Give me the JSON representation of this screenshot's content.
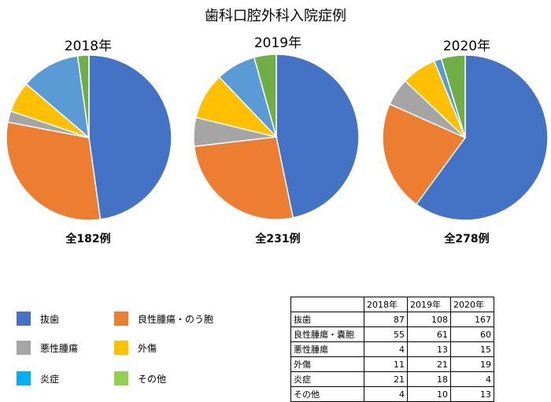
{
  "title": "歯科口腔外科入院症例",
  "colors": {
    "抜歯": "#4472C4",
    "良性腫瘍・のう胞": "#ED7D31",
    "悪性腫瘍": "#A5A5A5",
    "外傷": "#FFC000",
    "炎症": "#5B9BD5",
    "その他": "#70AD47"
  },
  "legend": {
    "items": [
      {
        "label": "抜歯",
        "color": "#4472C4"
      },
      {
        "label": "良性腫瘍・のう胞",
        "color": "#ED7D31"
      },
      {
        "label": "悪性腫瘍",
        "color": "#A5A5A5"
      },
      {
        "label": "外傷",
        "color": "#FFC000"
      },
      {
        "label": "炎症",
        "color": "#00B0F0"
      },
      {
        "label": "その他",
        "color": "#92D050"
      }
    ]
  },
  "chart_data": [
    {
      "type": "pie",
      "title": "2018年",
      "total_label": "全182例",
      "categories": [
        "抜歯",
        "良性腫瘍・のう胞",
        "悪性腫瘍",
        "外傷",
        "炎症",
        "その他"
      ],
      "values": [
        87,
        55,
        4,
        11,
        21,
        4
      ]
    },
    {
      "type": "pie",
      "title": "2019年",
      "total_label": "全231例",
      "categories": [
        "抜歯",
        "良性腫瘍・のう胞",
        "悪性腫瘍",
        "外傷",
        "炎症",
        "その他"
      ],
      "values": [
        108,
        61,
        13,
        21,
        18,
        10
      ]
    },
    {
      "type": "pie",
      "title": "2020年",
      "total_label": "全278例",
      "categories": [
        "抜歯",
        "良性腫瘍・のう胞",
        "悪性腫瘍",
        "外傷",
        "炎症",
        "その他"
      ],
      "values": [
        167,
        60,
        15,
        19,
        4,
        13
      ]
    }
  ],
  "table": {
    "headers": [
      "",
      "2018年",
      "2019年",
      "2020年"
    ],
    "rows": [
      [
        "抜歯",
        "87",
        "108",
        "167"
      ],
      [
        "良性腫瘍・嚢胞",
        "55",
        "61",
        "60"
      ],
      [
        "悪性腫瘍",
        "4",
        "13",
        "15"
      ],
      [
        "外傷",
        "11",
        "21",
        "19"
      ],
      [
        "炎症",
        "21",
        "18",
        "4"
      ],
      [
        "その他",
        "4",
        "10",
        "13"
      ]
    ]
  }
}
